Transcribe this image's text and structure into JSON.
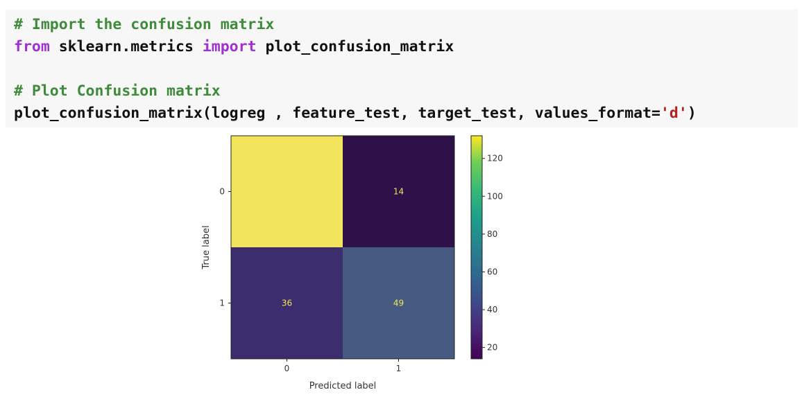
{
  "code": {
    "lines": [
      [
        {
          "text": "# Import the confusion matrix",
          "cls": "comment"
        }
      ],
      [
        {
          "text": "from",
          "cls": "kw"
        },
        {
          "text": " sklearn.metrics ",
          "cls": ""
        },
        {
          "text": "import",
          "cls": "kw"
        },
        {
          "text": " plot_confusion_matrix",
          "cls": ""
        }
      ],
      [
        {
          "text": "",
          "cls": ""
        }
      ],
      [
        {
          "text": "# Plot Confusion matrix",
          "cls": "comment"
        }
      ],
      [
        {
          "text": "plot_confusion_matrix(logreg , feature_test, target_test, values_format=",
          "cls": ""
        },
        {
          "text": "'d'",
          "cls": "str"
        },
        {
          "text": ")",
          "cls": ""
        }
      ]
    ]
  },
  "chart_data": {
    "type": "heatmap",
    "x_categories": [
      "0",
      "1"
    ],
    "y_categories": [
      "0",
      "1"
    ],
    "values": [
      [
        132,
        14
      ],
      [
        36,
        49
      ]
    ],
    "xlabel": "Predicted label",
    "ylabel": "True label",
    "colormap": "viridis",
    "cell_colors": [
      [
        "#f3e55b",
        "#2d1148"
      ],
      [
        "#3c2e6e",
        "#465a82"
      ]
    ],
    "text_color": "#f3e55b",
    "colorbar": {
      "range": [
        14,
        132
      ],
      "ticks": [
        20,
        40,
        60,
        80,
        100,
        120
      ]
    },
    "grid": false
  }
}
